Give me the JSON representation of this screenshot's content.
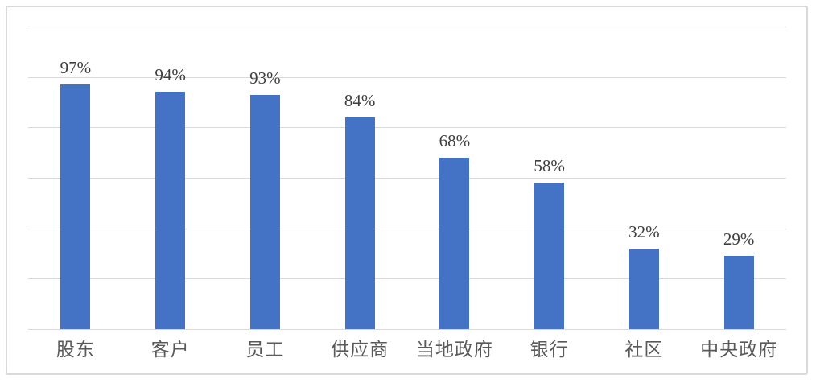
{
  "chart_data": {
    "type": "bar",
    "title": "",
    "xlabel": "",
    "ylabel": "",
    "categories": [
      "股东",
      "客户",
      "员工",
      "供应商",
      "当地政府",
      "银行",
      "社区",
      "中央政府"
    ],
    "values": [
      97,
      94,
      93,
      84,
      68,
      58,
      32,
      29
    ],
    "value_labels": [
      "97%",
      "94%",
      "93%",
      "84%",
      "68%",
      "58%",
      "32%",
      "29%"
    ],
    "ylim": [
      0,
      120
    ],
    "gridline_step": 20,
    "grid": "horizontal-only",
    "y_tick_labels_visible": false,
    "legend": "none",
    "colors": {
      "bar": "#4472C4",
      "gridline": "#D9D9D9",
      "axis_line": "#D9D9D9",
      "value_label": "#3F3F3F",
      "category_label": "#595959",
      "frame_border": "#D9D9D9",
      "background": "#FFFFFF"
    }
  }
}
